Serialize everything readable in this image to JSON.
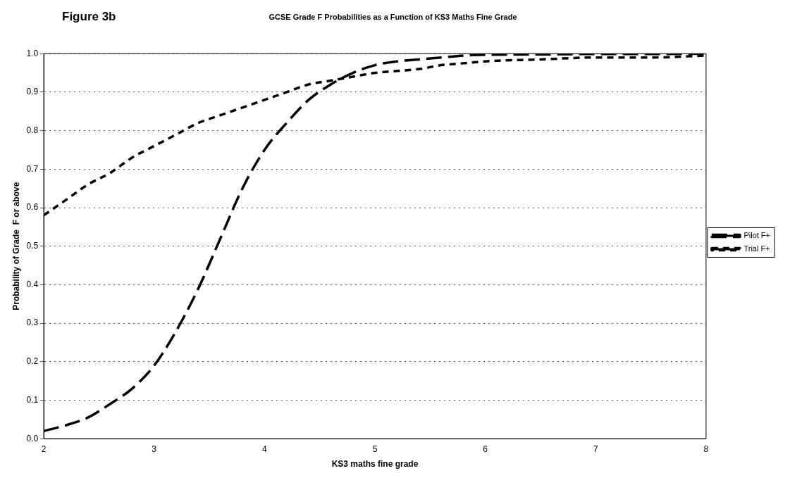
{
  "chart_data": {
    "type": "line",
    "title": "GCSE Grade F Probabilities as a Function of KS3 Maths Fine Grade",
    "xlabel": "KS3 maths fine grade",
    "ylabel": "Probability of Grade  F or above",
    "annotations": [
      "Figure 3b"
    ],
    "xlim": [
      2,
      8
    ],
    "xticks": [
      2,
      3,
      4,
      5,
      6,
      7,
      8
    ],
    "ylim": [
      0,
      1
    ],
    "yticks": [
      {
        "value": 0,
        "label": "0.0"
      },
      0.1,
      0.2,
      0.3,
      0.4,
      0.5,
      0.6,
      0.7,
      0.8,
      0.9,
      {
        "value": 1,
        "label": "1.0"
      }
    ],
    "grid": "y",
    "legend": "right",
    "marker": "none",
    "series": [
      {
        "name": "Pilot F+",
        "color": "#000000",
        "line_style": "dashed",
        "x": [
          2,
          2.2,
          2.4,
          2.6,
          2.8,
          3,
          3.2,
          3.4,
          3.6,
          3.8,
          4,
          4.2,
          4.4,
          4.6,
          4.8,
          5,
          5.2,
          5.4,
          5.6,
          5.8,
          6,
          6.5,
          7,
          7.5,
          8
        ],
        "values": [
          0.02,
          0.035,
          0.055,
          0.09,
          0.13,
          0.19,
          0.28,
          0.39,
          0.52,
          0.65,
          0.75,
          0.82,
          0.88,
          0.92,
          0.95,
          0.97,
          0.98,
          0.985,
          0.99,
          0.995,
          0.997,
          0.998,
          0.999,
          0.999,
          1
        ]
      },
      {
        "name": "Trial F+",
        "color": "#000000",
        "line_style": "dashed",
        "x": [
          2,
          2.2,
          2.4,
          2.6,
          2.8,
          3,
          3.2,
          3.4,
          3.6,
          3.8,
          4,
          4.2,
          4.4,
          4.6,
          4.8,
          5,
          5.2,
          5.4,
          5.6,
          5.8,
          6,
          6.5,
          7,
          7.5,
          8
        ],
        "values": [
          0.58,
          0.62,
          0.66,
          0.69,
          0.73,
          0.76,
          0.79,
          0.82,
          0.84,
          0.86,
          0.88,
          0.9,
          0.92,
          0.93,
          0.94,
          0.95,
          0.955,
          0.96,
          0.97,
          0.975,
          0.98,
          0.985,
          0.99,
          0.99,
          0.995
        ]
      }
    ]
  }
}
